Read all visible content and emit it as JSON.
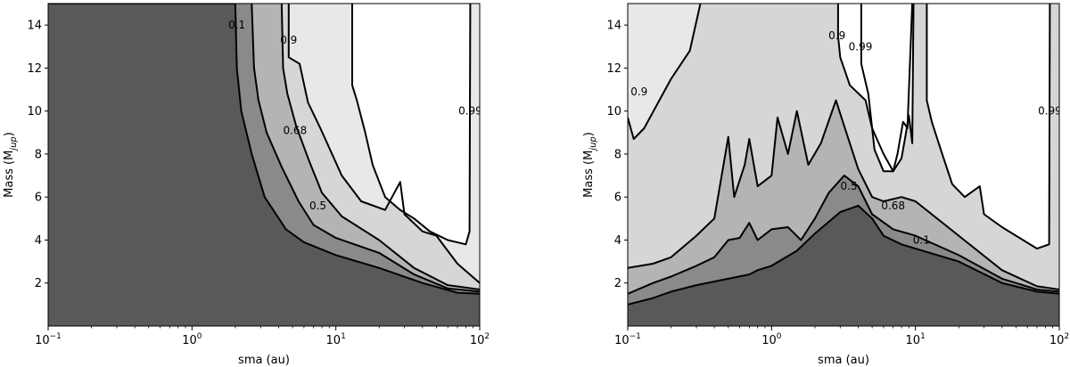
{
  "chart_data": [
    {
      "type": "contour",
      "xlabel": "sma (au)",
      "ylabel_main": "Mass (M",
      "ylabel_sub": "jup",
      "ylabel_close": ")",
      "xscale": "log",
      "xlim": [
        0.1,
        100
      ],
      "ylim": [
        0,
        15
      ],
      "x_ticks": [
        {
          "value": 0.1,
          "base": "10",
          "exp": "−1"
        },
        {
          "value": 1,
          "base": "10",
          "exp": "0"
        },
        {
          "value": 10,
          "base": "10",
          "exp": "1"
        },
        {
          "value": 100,
          "base": "10",
          "exp": "2"
        }
      ],
      "y_ticks": [
        2,
        4,
        6,
        8,
        10,
        12,
        14
      ],
      "levels": [
        "0.1",
        "0.5",
        "0.68",
        "0.9",
        "0.99"
      ],
      "fills": [
        "#595959",
        "#8a8a8a",
        "#b4b4b4",
        "#d6d6d6",
        "#e8e8e8",
        "#ffffff"
      ],
      "boundaries": [
        [
          [
            0.1,
            15
          ],
          [
            2.0,
            15
          ],
          [
            2.05,
            12
          ],
          [
            2.2,
            10
          ],
          [
            2.6,
            8
          ],
          [
            3.2,
            6
          ],
          [
            4.5,
            4.5
          ],
          [
            6,
            3.9
          ],
          [
            10,
            3.3
          ],
          [
            20,
            2.7
          ],
          [
            40,
            2.0
          ],
          [
            70,
            1.55
          ],
          [
            100,
            1.5
          ]
        ],
        [
          [
            2.6,
            15
          ],
          [
            2.7,
            12
          ],
          [
            2.9,
            10.5
          ],
          [
            3.3,
            9
          ],
          [
            4.2,
            7.4
          ],
          [
            5.5,
            5.8
          ],
          [
            7,
            4.7
          ],
          [
            10,
            4.1
          ],
          [
            20,
            3.4
          ],
          [
            35,
            2.4
          ],
          [
            60,
            1.75
          ],
          [
            100,
            1.6
          ]
        ],
        [
          [
            4.2,
            15
          ],
          [
            4.3,
            12
          ],
          [
            4.6,
            10.8
          ],
          [
            5.3,
            9.3
          ],
          [
            6.5,
            7.7
          ],
          [
            8,
            6.2
          ],
          [
            11,
            5.1
          ],
          [
            20,
            4.0
          ],
          [
            35,
            2.7
          ],
          [
            60,
            1.9
          ],
          [
            100,
            1.7
          ]
        ],
        [
          [
            4.7,
            15
          ],
          [
            4.7,
            12.5
          ],
          [
            5.6,
            12.2
          ],
          [
            6.4,
            10.4
          ],
          [
            7.8,
            9.2
          ],
          [
            11,
            7.0
          ],
          [
            15,
            5.8
          ],
          [
            22,
            5.4
          ],
          [
            28,
            6.7
          ],
          [
            30,
            5.2
          ],
          [
            40,
            4.4
          ],
          [
            50,
            4.2
          ],
          [
            70,
            2.9
          ],
          [
            100,
            2.0
          ]
        ],
        [
          [
            13,
            15
          ],
          [
            13,
            11.2
          ],
          [
            14,
            10.5
          ],
          [
            16,
            9.0
          ],
          [
            18,
            7.5
          ],
          [
            22,
            6.0
          ],
          [
            28,
            5.4
          ],
          [
            35,
            5.0
          ],
          [
            45,
            4.4
          ],
          [
            60,
            4.0
          ],
          [
            80,
            3.8
          ],
          [
            85,
            4.4
          ],
          [
            86,
            15
          ]
        ]
      ],
      "labels": [
        {
          "level": "0.1",
          "x": 2.05,
          "y": 14.0
        },
        {
          "level": "0.68",
          "x": 5.2,
          "y": 9.1
        },
        {
          "level": "0.5",
          "x": 7.5,
          "y": 5.6
        },
        {
          "level": "0.9",
          "x": 4.7,
          "y": 13.3
        },
        {
          "level": "0.99",
          "x": 86,
          "y": 10.0
        }
      ]
    },
    {
      "type": "contour",
      "xlabel": "sma (au)",
      "ylabel_main": "Mass (M",
      "ylabel_sub": "jup",
      "ylabel_close": ")",
      "xscale": "log",
      "xlim": [
        0.1,
        100
      ],
      "ylim": [
        0,
        15
      ],
      "x_ticks": [
        {
          "value": 0.1,
          "base": "10",
          "exp": "−1"
        },
        {
          "value": 1,
          "base": "10",
          "exp": "0"
        },
        {
          "value": 10,
          "base": "10",
          "exp": "1"
        },
        {
          "value": 100,
          "base": "10",
          "exp": "2"
        }
      ],
      "y_ticks": [
        2,
        4,
        6,
        8,
        10,
        12,
        14
      ],
      "levels": [
        "0.1",
        "0.5",
        "0.68",
        "0.9",
        "0.99"
      ],
      "fills": [
        "#595959",
        "#8a8a8a",
        "#b4b4b4",
        "#d6d6d6",
        "#e8e8e8",
        "#ffffff"
      ],
      "boundaries": [
        [
          [
            0.1,
            1.0
          ],
          [
            0.15,
            1.3
          ],
          [
            0.2,
            1.6
          ],
          [
            0.3,
            1.9
          ],
          [
            0.5,
            2.2
          ],
          [
            0.7,
            2.4
          ],
          [
            0.8,
            2.6
          ],
          [
            1.0,
            2.8
          ],
          [
            1.5,
            3.5
          ],
          [
            2.0,
            4.3
          ],
          [
            3.0,
            5.3
          ],
          [
            4.0,
            5.6
          ],
          [
            5.0,
            5.0
          ],
          [
            6.0,
            4.2
          ],
          [
            8.0,
            3.8
          ],
          [
            10,
            3.6
          ],
          [
            20,
            3.0
          ],
          [
            40,
            2.0
          ],
          [
            70,
            1.6
          ],
          [
            100,
            1.5
          ]
        ],
        [
          [
            0.1,
            1.5
          ],
          [
            0.15,
            2.0
          ],
          [
            0.2,
            2.3
          ],
          [
            0.3,
            2.8
          ],
          [
            0.4,
            3.2
          ],
          [
            0.5,
            4.0
          ],
          [
            0.6,
            4.1
          ],
          [
            0.7,
            4.8
          ],
          [
            0.8,
            4.0
          ],
          [
            1.0,
            4.5
          ],
          [
            1.3,
            4.6
          ],
          [
            1.6,
            4.0
          ],
          [
            2.0,
            5.0
          ],
          [
            2.5,
            6.2
          ],
          [
            3.2,
            7.0
          ],
          [
            4.0,
            6.5
          ],
          [
            5.0,
            5.2
          ],
          [
            7.0,
            4.5
          ],
          [
            10,
            4.2
          ],
          [
            20,
            3.3
          ],
          [
            40,
            2.2
          ],
          [
            70,
            1.7
          ],
          [
            100,
            1.6
          ]
        ],
        [
          [
            0.1,
            2.7
          ],
          [
            0.15,
            2.9
          ],
          [
            0.2,
            3.2
          ],
          [
            0.3,
            4.2
          ],
          [
            0.4,
            5.0
          ],
          [
            0.5,
            8.8
          ],
          [
            0.55,
            6.0
          ],
          [
            0.65,
            7.5
          ],
          [
            0.7,
            8.7
          ],
          [
            0.8,
            6.5
          ],
          [
            1.0,
            7.0
          ],
          [
            1.1,
            9.7
          ],
          [
            1.3,
            8.0
          ],
          [
            1.5,
            10.0
          ],
          [
            1.8,
            7.5
          ],
          [
            2.2,
            8.5
          ],
          [
            2.8,
            10.5
          ],
          [
            3.2,
            9.3
          ],
          [
            4.0,
            7.3
          ],
          [
            5.0,
            6.0
          ],
          [
            6.0,
            5.8
          ],
          [
            8.0,
            6.0
          ],
          [
            10,
            5.8
          ],
          [
            20,
            4.2
          ],
          [
            40,
            2.6
          ],
          [
            70,
            1.85
          ],
          [
            100,
            1.7
          ]
        ],
        [
          [
            0.1,
            9.7
          ],
          [
            0.11,
            8.7
          ],
          [
            0.13,
            9.2
          ],
          [
            0.2,
            11.5
          ],
          [
            0.27,
            12.8
          ],
          [
            0.32,
            15
          ]
        ],
        [
          [
            2.9,
            15
          ],
          [
            2.9,
            13.5
          ],
          [
            3.0,
            12.5
          ],
          [
            3.5,
            11.2
          ],
          [
            4.5,
            10.5
          ],
          [
            5.0,
            9.2
          ],
          [
            6.0,
            8.0
          ],
          [
            7.0,
            7.2
          ],
          [
            8.0,
            7.8
          ],
          [
            8.5,
            8.8
          ],
          [
            9.0,
            9.8
          ],
          [
            9.5,
            8.5
          ],
          [
            9.7,
            15
          ]
        ],
        [
          [
            4.2,
            15
          ],
          [
            4.2,
            12.2
          ],
          [
            4.7,
            10.8
          ],
          [
            5.2,
            8.2
          ],
          [
            6.0,
            7.2
          ],
          [
            7.0,
            7.2
          ],
          [
            7.5,
            8.0
          ],
          [
            8.2,
            9.5
          ],
          [
            8.8,
            9.2
          ],
          [
            9.5,
            15
          ]
        ],
        [
          [
            12,
            15
          ],
          [
            12,
            10.5
          ],
          [
            13,
            9.5
          ],
          [
            15,
            8.2
          ],
          [
            18,
            6.6
          ],
          [
            22,
            6.0
          ],
          [
            28,
            6.5
          ],
          [
            30,
            5.2
          ],
          [
            40,
            4.6
          ],
          [
            50,
            4.2
          ],
          [
            70,
            3.6
          ],
          [
            85,
            3.8
          ],
          [
            86,
            15
          ]
        ]
      ],
      "labels": [
        {
          "level": "0.9",
          "x": 0.12,
          "y": 10.9
        },
        {
          "level": "0.9",
          "x": 2.85,
          "y": 13.5
        },
        {
          "level": "0.99",
          "x": 4.15,
          "y": 13.0
        },
        {
          "level": "0.99",
          "x": 86,
          "y": 10.0
        },
        {
          "level": "0.5",
          "x": 3.45,
          "y": 6.5
        },
        {
          "level": "0.68",
          "x": 7.0,
          "y": 5.6
        },
        {
          "level": "0.1",
          "x": 11,
          "y": 4.0
        }
      ]
    }
  ]
}
